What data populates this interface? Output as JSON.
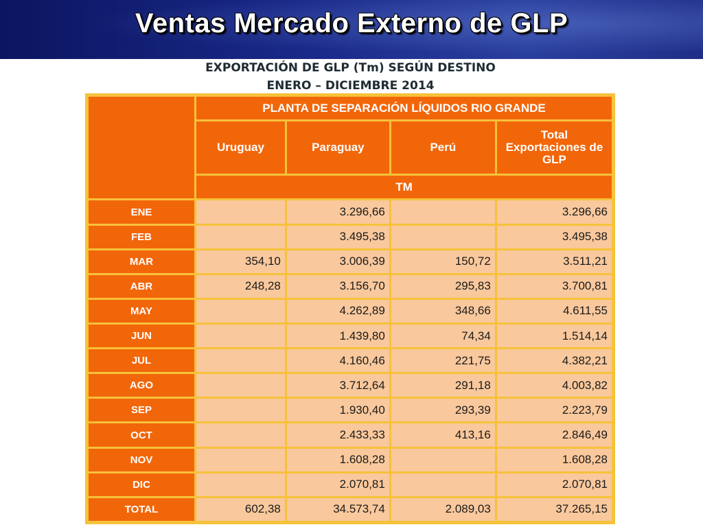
{
  "slide": {
    "title": "Ventas Mercado Externo de GLP"
  },
  "subtitle": {
    "line1": "EXPORTACIÓN DE GLP (Tm) SEGÚN DESTINO",
    "line2": "ENERO – DICIEMBRE 2014"
  },
  "table": {
    "group_header": "PLANTA DE SEPARACIÓN LÍQUIDOS RIO GRANDE",
    "columns": [
      "Uruguay",
      "Paraguay",
      "Perú",
      "Total Exportaciones de GLP"
    ],
    "unit": "TM",
    "rows": [
      {
        "month": "ENE",
        "uruguay": "",
        "paraguay": "3.296,66",
        "peru": "",
        "total": "3.296,66"
      },
      {
        "month": "FEB",
        "uruguay": "",
        "paraguay": "3.495,38",
        "peru": "",
        "total": "3.495,38"
      },
      {
        "month": "MAR",
        "uruguay": "354,10",
        "paraguay": "3.006,39",
        "peru": "150,72",
        "total": "3.511,21"
      },
      {
        "month": "ABR",
        "uruguay": "248,28",
        "paraguay": "3.156,70",
        "peru": "295,83",
        "total": "3.700,81"
      },
      {
        "month": "MAY",
        "uruguay": "",
        "paraguay": "4.262,89",
        "peru": "348,66",
        "total": "4.611,55"
      },
      {
        "month": "JUN",
        "uruguay": "",
        "paraguay": "1.439,80",
        "peru": "74,34",
        "total": "1.514,14"
      },
      {
        "month": "JUL",
        "uruguay": "",
        "paraguay": "4.160,46",
        "peru": "221,75",
        "total": "4.382,21"
      },
      {
        "month": "AGO",
        "uruguay": "",
        "paraguay": "3.712,64",
        "peru": "291,18",
        "total": "4.003,82"
      },
      {
        "month": "SEP",
        "uruguay": "",
        "paraguay": "1.930,40",
        "peru": "293,39",
        "total": "2.223,79"
      },
      {
        "month": "OCT",
        "uruguay": "",
        "paraguay": "2.433,33",
        "peru": "413,16",
        "total": "2.846,49"
      },
      {
        "month": "NOV",
        "uruguay": "",
        "paraguay": "1.608,28",
        "peru": "",
        "total": "1.608,28"
      },
      {
        "month": "DIC",
        "uruguay": "",
        "paraguay": "2.070,81",
        "peru": "",
        "total": "2.070,81"
      },
      {
        "month": "TOTAL",
        "uruguay": "602,38",
        "paraguay": "34.573,74",
        "peru": "2.089,03",
        "total": "37.265,15"
      }
    ]
  },
  "colors": {
    "header_orange": "#f2660a",
    "cell_peach": "#f9c89c",
    "grid_yellow": "#f6c23a",
    "title_bar_blue": "#1a2a8a"
  }
}
